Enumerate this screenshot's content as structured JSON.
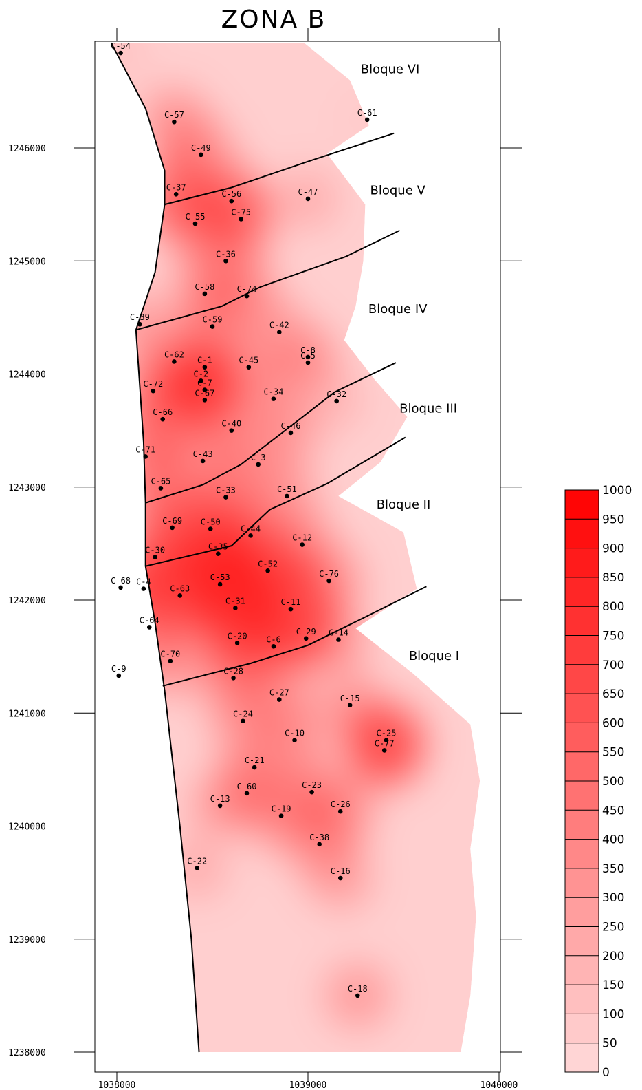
{
  "title": "ZONA B",
  "map": {
    "x_range": [
      1037880,
      1040000
    ],
    "y_range": [
      1238000,
      1246930
    ],
    "x_ticks": [
      1038000,
      1039000,
      1040000
    ],
    "x_tick_labels": [
      "1038000",
      "1039000",
      "1040000"
    ],
    "y_ticks": [
      1238000,
      1239000,
      1240000,
      1241000,
      1242000,
      1243000,
      1244000,
      1245000,
      1246000
    ],
    "y_tick_labels": [
      "1238000",
      "1239000",
      "1240000",
      "1241000",
      "1242000",
      "1243000",
      "1244000",
      "1245000",
      "1246000"
    ],
    "fill_color": "#ff0000",
    "boundary_color": "#000000"
  },
  "blocks": [
    {
      "label": "Bloque VI",
      "x": 1039430,
      "y": 1246660
    },
    {
      "label": "Bloque V",
      "x": 1039470,
      "y": 1245590
    },
    {
      "label": "Bloque IV",
      "x": 1039470,
      "y": 1244540
    },
    {
      "label": "Bloque III",
      "x": 1039630,
      "y": 1243660
    },
    {
      "label": "Bloque II",
      "x": 1039500,
      "y": 1242810
    },
    {
      "label": "Bloque I",
      "x": 1039660,
      "y": 1241470
    }
  ],
  "wells": [
    {
      "label": "C-54",
      "x": 1038020,
      "y": 1246840,
      "v": 120
    },
    {
      "label": "C-57",
      "x": 1038300,
      "y": 1246230,
      "v": 500
    },
    {
      "label": "C-61",
      "x": 1039310,
      "y": 1246250,
      "v": 60
    },
    {
      "label": "C-49",
      "x": 1038440,
      "y": 1245940,
      "v": 520
    },
    {
      "label": "C-37",
      "x": 1038310,
      "y": 1245590,
      "v": 720
    },
    {
      "label": "C-56",
      "x": 1038600,
      "y": 1245530,
      "v": 600
    },
    {
      "label": "C-47",
      "x": 1039000,
      "y": 1245550,
      "v": 300
    },
    {
      "label": "C-75",
      "x": 1038650,
      "y": 1245370,
      "v": 560
    },
    {
      "label": "C-55",
      "x": 1038410,
      "y": 1245330,
      "v": 560
    },
    {
      "label": "C-36",
      "x": 1038570,
      "y": 1245000,
      "v": 520
    },
    {
      "label": "C-58",
      "x": 1038460,
      "y": 1244710,
      "v": 460
    },
    {
      "label": "C-74",
      "x": 1038680,
      "y": 1244690,
      "v": 480
    },
    {
      "label": "C-39",
      "x": 1038120,
      "y": 1244440,
      "v": 400
    },
    {
      "label": "C-59",
      "x": 1038500,
      "y": 1244420,
      "v": 470
    },
    {
      "label": "C-42",
      "x": 1038850,
      "y": 1244370,
      "v": 380
    },
    {
      "label": "C-8",
      "x": 1039000,
      "y": 1244150,
      "v": 300
    },
    {
      "label": "C-5",
      "x": 1039000,
      "y": 1244100,
      "v": 300
    },
    {
      "label": "C-62",
      "x": 1038300,
      "y": 1244110,
      "v": 520
    },
    {
      "label": "C-1",
      "x": 1038460,
      "y": 1244060,
      "v": 500
    },
    {
      "label": "C-45",
      "x": 1038690,
      "y": 1244060,
      "v": 440
    },
    {
      "label": "C-2",
      "x": 1038440,
      "y": 1243940,
      "v": 500
    },
    {
      "label": "C-7",
      "x": 1038460,
      "y": 1243860,
      "v": 520
    },
    {
      "label": "C-67",
      "x": 1038460,
      "y": 1243770,
      "v": 540
    },
    {
      "label": "C-72",
      "x": 1038190,
      "y": 1243850,
      "v": 520
    },
    {
      "label": "C-34",
      "x": 1038820,
      "y": 1243780,
      "v": 400
    },
    {
      "label": "C-32",
      "x": 1039150,
      "y": 1243760,
      "v": 220
    },
    {
      "label": "C-66",
      "x": 1038240,
      "y": 1243600,
      "v": 620
    },
    {
      "label": "C-40",
      "x": 1038600,
      "y": 1243500,
      "v": 450
    },
    {
      "label": "C-46",
      "x": 1038910,
      "y": 1243480,
      "v": 380
    },
    {
      "label": "C-71",
      "x": 1038150,
      "y": 1243270,
      "v": 520
    },
    {
      "label": "C-43",
      "x": 1038450,
      "y": 1243230,
      "v": 460
    },
    {
      "label": "C-3",
      "x": 1038740,
      "y": 1243200,
      "v": 420
    },
    {
      "label": "C-65",
      "x": 1038230,
      "y": 1242990,
      "v": 560
    },
    {
      "label": "C-33",
      "x": 1038570,
      "y": 1242910,
      "v": 520
    },
    {
      "label": "C-51",
      "x": 1038890,
      "y": 1242920,
      "v": 420
    },
    {
      "label": "C-69",
      "x": 1038290,
      "y": 1242640,
      "v": 620
    },
    {
      "label": "C-50",
      "x": 1038490,
      "y": 1242630,
      "v": 640
    },
    {
      "label": "C-44",
      "x": 1038700,
      "y": 1242570,
      "v": 600
    },
    {
      "label": "C-12",
      "x": 1038970,
      "y": 1242490,
      "v": 500
    },
    {
      "label": "C-30",
      "x": 1038200,
      "y": 1242380,
      "v": 660
    },
    {
      "label": "C-35",
      "x": 1038530,
      "y": 1242410,
      "v": 720
    },
    {
      "label": "C-52",
      "x": 1038790,
      "y": 1242260,
      "v": 800
    },
    {
      "label": "C-76",
      "x": 1039110,
      "y": 1242170,
      "v": 500
    },
    {
      "label": "C-68",
      "x": 1038020,
      "y": 1242110,
      "v": 380
    },
    {
      "label": "C-4",
      "x": 1038140,
      "y": 1242100,
      "v": 600
    },
    {
      "label": "C-53",
      "x": 1038540,
      "y": 1242140,
      "v": 900
    },
    {
      "label": "C-63",
      "x": 1038330,
      "y": 1242040,
      "v": 780
    },
    {
      "label": "C-31",
      "x": 1038620,
      "y": 1241930,
      "v": 980
    },
    {
      "label": "C-11",
      "x": 1038910,
      "y": 1241920,
      "v": 1000
    },
    {
      "label": "C-64",
      "x": 1038170,
      "y": 1241760,
      "v": 540
    },
    {
      "label": "C-20",
      "x": 1038630,
      "y": 1241620,
      "v": 640
    },
    {
      "label": "C-6",
      "x": 1038820,
      "y": 1241590,
      "v": 580
    },
    {
      "label": "C-29",
      "x": 1038990,
      "y": 1241660,
      "v": 520
    },
    {
      "label": "C-14",
      "x": 1039160,
      "y": 1241650,
      "v": 400
    },
    {
      "label": "C-70",
      "x": 1038280,
      "y": 1241460,
      "v": 500
    },
    {
      "label": "C-9",
      "x": 1038010,
      "y": 1241330,
      "v": 200
    },
    {
      "label": "C-28",
      "x": 1038610,
      "y": 1241310,
      "v": 500
    },
    {
      "label": "C-27",
      "x": 1038850,
      "y": 1241120,
      "v": 460
    },
    {
      "label": "C-15",
      "x": 1039220,
      "y": 1241070,
      "v": 460
    },
    {
      "label": "C-24",
      "x": 1038660,
      "y": 1240930,
      "v": 440
    },
    {
      "label": "C-10",
      "x": 1038930,
      "y": 1240760,
      "v": 480
    },
    {
      "label": "C-25",
      "x": 1039410,
      "y": 1240760,
      "v": 720
    },
    {
      "label": "C-77",
      "x": 1039400,
      "y": 1240670,
      "v": 700
    },
    {
      "label": "C-21",
      "x": 1038720,
      "y": 1240520,
      "v": 440
    },
    {
      "label": "C-23",
      "x": 1039020,
      "y": 1240300,
      "v": 500
    },
    {
      "label": "C-60",
      "x": 1038680,
      "y": 1240290,
      "v": 440
    },
    {
      "label": "C-13",
      "x": 1038540,
      "y": 1240180,
      "v": 380
    },
    {
      "label": "C-19",
      "x": 1038860,
      "y": 1240090,
      "v": 500
    },
    {
      "label": "C-26",
      "x": 1039170,
      "y": 1240130,
      "v": 520
    },
    {
      "label": "C-38",
      "x": 1039060,
      "y": 1239840,
      "v": 460
    },
    {
      "label": "C-22",
      "x": 1038420,
      "y": 1239630,
      "v": 300
    },
    {
      "label": "C-16",
      "x": 1039170,
      "y": 1239540,
      "v": 400
    },
    {
      "label": "C-18",
      "x": 1039260,
      "y": 1238500,
      "v": 440
    }
  ],
  "faults": [
    [
      [
        1038250,
        1245500
      ],
      [
        1038600,
        1245650
      ],
      [
        1039000,
        1245880
      ],
      [
        1039450,
        1246130
      ]
    ],
    [
      [
        1038100,
        1244390
      ],
      [
        1038550,
        1244600
      ],
      [
        1038750,
        1244770
      ],
      [
        1039200,
        1245040
      ],
      [
        1039480,
        1245270
      ]
    ],
    [
      [
        1038150,
        1242860
      ],
      [
        1038450,
        1243020
      ],
      [
        1038650,
        1243200
      ],
      [
        1038880,
        1243500
      ],
      [
        1039140,
        1243840
      ],
      [
        1039460,
        1244100
      ]
    ],
    [
      [
        1038150,
        1242300
      ],
      [
        1038600,
        1242480
      ],
      [
        1038800,
        1242800
      ],
      [
        1039100,
        1243030
      ],
      [
        1039510,
        1243440
      ]
    ],
    [
      [
        1038240,
        1241240
      ],
      [
        1038700,
        1241440
      ],
      [
        1039000,
        1241600
      ],
      [
        1039300,
        1241850
      ],
      [
        1039620,
        1242120
      ]
    ]
  ],
  "west_boundary": [
    [
      1037970,
      1246930
    ],
    [
      1038150,
      1246350
    ],
    [
      1038250,
      1245800
    ],
    [
      1038250,
      1245500
    ],
    [
      1038200,
      1244900
    ],
    [
      1038100,
      1244390
    ],
    [
      1038140,
      1243400
    ],
    [
      1038150,
      1242860
    ],
    [
      1038150,
      1242300
    ],
    [
      1038200,
      1241800
    ],
    [
      1038250,
      1241200
    ],
    [
      1038330,
      1240000
    ],
    [
      1038390,
      1239000
    ],
    [
      1038430,
      1238000
    ]
  ],
  "east_boundary": [
    [
      1038980,
      1246930
    ],
    [
      1039220,
      1246600
    ],
    [
      1039320,
      1246200
    ],
    [
      1039100,
      1245950
    ],
    [
      1039300,
      1245500
    ],
    [
      1039290,
      1245000
    ],
    [
      1039250,
      1244600
    ],
    [
      1039190,
      1244300
    ],
    [
      1039350,
      1243950
    ],
    [
      1039520,
      1243620
    ],
    [
      1039380,
      1243220
    ],
    [
      1039160,
      1242920
    ],
    [
      1039500,
      1242600
    ],
    [
      1039570,
      1242100
    ],
    [
      1039250,
      1241750
    ],
    [
      1039550,
      1241350
    ],
    [
      1039850,
      1240900
    ],
    [
      1039900,
      1240400
    ],
    [
      1039850,
      1239800
    ],
    [
      1039880,
      1239200
    ],
    [
      1039850,
      1238500
    ],
    [
      1039800,
      1238000
    ]
  ],
  "legend": {
    "min": 0,
    "max": 1000,
    "step": 50,
    "labels": [
      "1000",
      "950",
      "900",
      "850",
      "800",
      "750",
      "700",
      "650",
      "600",
      "550",
      "500",
      "450",
      "400",
      "350",
      "300",
      "250",
      "200",
      "150",
      "100",
      "50",
      "0"
    ]
  }
}
